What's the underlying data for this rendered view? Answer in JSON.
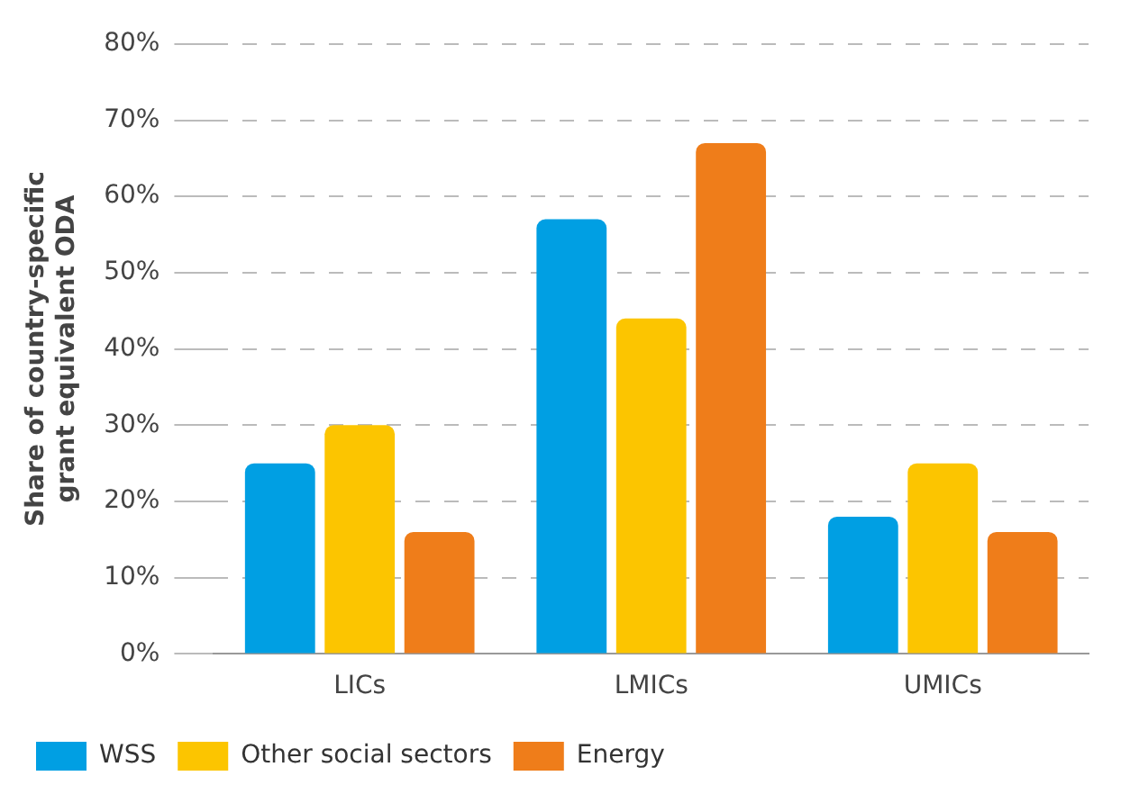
{
  "chart_data": {
    "type": "bar",
    "ylabel": "Share of country-specific\ngrant equivalent ODA",
    "categories": [
      "LICs",
      "LMICs",
      "UMICs"
    ],
    "series": [
      {
        "name": "WSS",
        "color": "#009fe3",
        "values": [
          25,
          57,
          18
        ]
      },
      {
        "name": "Other social sectors",
        "color": "#fcc500",
        "values": [
          30,
          44,
          25
        ]
      },
      {
        "name": "Energy",
        "color": "#ef7d1a",
        "values": [
          16,
          67,
          16
        ]
      }
    ],
    "ylim": [
      0,
      80
    ],
    "yticks": [
      {
        "value": 0,
        "label": "0%"
      },
      {
        "value": 10,
        "label": "10%"
      },
      {
        "value": 20,
        "label": "20%"
      },
      {
        "value": 30,
        "label": "30%"
      },
      {
        "value": 40,
        "label": "40%"
      },
      {
        "value": 50,
        "label": "50%"
      },
      {
        "value": 60,
        "label": "60%"
      },
      {
        "value": 70,
        "label": "70%"
      },
      {
        "value": 80,
        "label": "80%"
      }
    ],
    "grid": "y",
    "legend": "bottom left"
  }
}
